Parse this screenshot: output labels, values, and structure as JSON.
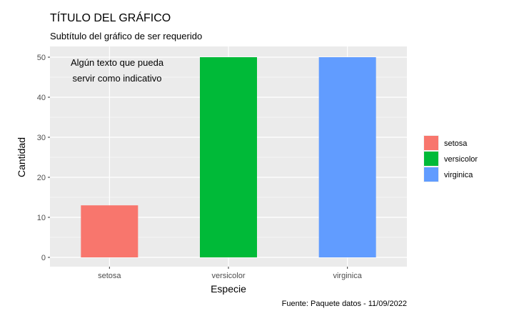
{
  "chart_data": {
    "type": "bar",
    "title": "TÍTULO DEL GRÁFICO",
    "subtitle": "Subtítulo del gráfico de ser requerido",
    "xlabel": "Especie",
    "ylabel": "Cantidad",
    "categories": [
      "setosa",
      "versicolor",
      "virginica"
    ],
    "values": [
      13,
      50,
      50
    ],
    "ylim": [
      0,
      52.5
    ],
    "yticks": [
      0,
      10,
      20,
      30,
      40,
      50
    ],
    "colors": [
      "#F8766D",
      "#00BA38",
      "#619CFF"
    ],
    "annotation": [
      "Algún texto que pueda",
      "servir como indicativo"
    ],
    "legend": {
      "position": "right",
      "items": [
        "setosa",
        "versicolor",
        "virginica"
      ]
    },
    "caption": "Fuente: Paquete datos - 11/09/2022",
    "grid": true,
    "panel_background": "#EBEBEB"
  }
}
